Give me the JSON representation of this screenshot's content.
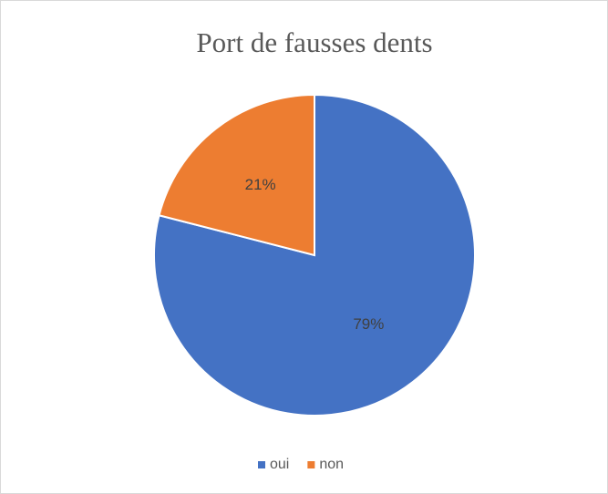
{
  "chart_data": {
    "type": "pie",
    "title": "Port de fausses dents",
    "categories": [
      "oui",
      "non"
    ],
    "values": [
      79,
      21
    ],
    "value_labels": [
      "79%",
      "21%"
    ],
    "colors": [
      "#4472c4",
      "#ed7d31"
    ],
    "legend": "bottom"
  }
}
